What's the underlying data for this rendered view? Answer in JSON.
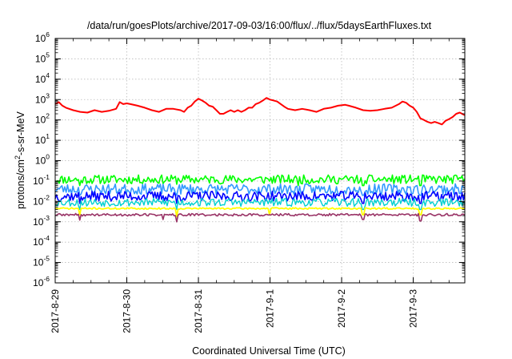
{
  "chart_data": {
    "type": "line",
    "title": "/data/run/goesPlots/archive/2017-09-03/16:00/flux/../flux/5daysEarthFluxes.txt",
    "xlabel": "Coordinated Universal Time (UTC)",
    "ylabel_parts": [
      "protons/cm",
      "2",
      "-s-sr-MeV"
    ],
    "yscale": "log",
    "ylim_exponents": [
      -6,
      6
    ],
    "y_tick_exponents": [
      -6,
      -5,
      -4,
      -3,
      -2,
      -1,
      0,
      1,
      2,
      3,
      4,
      5,
      6
    ],
    "x_ticks": [
      "2017-8-29",
      "2017-8-30",
      "2017-8-31",
      "2017-9-1",
      "2017-9-2",
      "2017-9-3"
    ],
    "xlim_days": [
      0,
      5.72
    ],
    "grid": true,
    "colors": {
      "red": "#ff0000",
      "green": "#00ff00",
      "lightblue": "#3399ff",
      "blue": "#0000ff",
      "cyan": "#00d0d0",
      "yellow": "#ffff00",
      "purple": "#993366",
      "grid": "#bbbbbb"
    },
    "series": [
      {
        "color": "#ff0000",
        "width": 2,
        "points": [
          [
            0,
            600
          ],
          [
            0.05,
            750
          ],
          [
            0.1,
            500
          ],
          [
            0.15,
            400
          ],
          [
            0.25,
            300
          ],
          [
            0.35,
            250
          ],
          [
            0.45,
            230
          ],
          [
            0.55,
            300
          ],
          [
            0.65,
            250
          ],
          [
            0.75,
            280
          ],
          [
            0.85,
            350
          ],
          [
            0.9,
            750
          ],
          [
            0.95,
            600
          ],
          [
            1.0,
            650
          ],
          [
            1.05,
            600
          ],
          [
            1.15,
            500
          ],
          [
            1.25,
            400
          ],
          [
            1.35,
            300
          ],
          [
            1.45,
            250
          ],
          [
            1.55,
            350
          ],
          [
            1.65,
            350
          ],
          [
            1.75,
            300
          ],
          [
            1.8,
            250
          ],
          [
            1.85,
            400
          ],
          [
            1.9,
            500
          ],
          [
            1.95,
            800
          ],
          [
            2.0,
            1100
          ],
          [
            2.05,
            900
          ],
          [
            2.1,
            700
          ],
          [
            2.15,
            500
          ],
          [
            2.2,
            450
          ],
          [
            2.25,
            300
          ],
          [
            2.3,
            200
          ],
          [
            2.35,
            200
          ],
          [
            2.4,
            250
          ],
          [
            2.45,
            300
          ],
          [
            2.5,
            250
          ],
          [
            2.55,
            300
          ],
          [
            2.6,
            250
          ],
          [
            2.65,
            300
          ],
          [
            2.7,
            400
          ],
          [
            2.75,
            400
          ],
          [
            2.8,
            600
          ],
          [
            2.85,
            700
          ],
          [
            2.9,
            900
          ],
          [
            2.95,
            1200
          ],
          [
            3.0,
            1000
          ],
          [
            3.05,
            900
          ],
          [
            3.1,
            800
          ],
          [
            3.15,
            600
          ],
          [
            3.2,
            450
          ],
          [
            3.25,
            350
          ],
          [
            3.35,
            300
          ],
          [
            3.45,
            350
          ],
          [
            3.55,
            300
          ],
          [
            3.65,
            250
          ],
          [
            3.75,
            350
          ],
          [
            3.85,
            400
          ],
          [
            3.95,
            500
          ],
          [
            4.05,
            550
          ],
          [
            4.1,
            500
          ],
          [
            4.2,
            400
          ],
          [
            4.3,
            300
          ],
          [
            4.4,
            280
          ],
          [
            4.5,
            300
          ],
          [
            4.6,
            350
          ],
          [
            4.7,
            400
          ],
          [
            4.8,
            600
          ],
          [
            4.85,
            800
          ],
          [
            4.9,
            700
          ],
          [
            4.95,
            500
          ],
          [
            5.0,
            400
          ],
          [
            5.05,
            250
          ],
          [
            5.1,
            120
          ],
          [
            5.15,
            100
          ],
          [
            5.2,
            80
          ],
          [
            5.25,
            70
          ],
          [
            5.3,
            80
          ],
          [
            5.35,
            70
          ],
          [
            5.4,
            60
          ],
          [
            5.45,
            90
          ],
          [
            5.5,
            110
          ],
          [
            5.55,
            140
          ],
          [
            5.6,
            200
          ],
          [
            5.65,
            230
          ],
          [
            5.72,
            170
          ]
        ]
      },
      {
        "color": "#00ff00",
        "width": 1.6,
        "base": 0.12,
        "amp": 0.22,
        "seed": 11,
        "spikes": [
          [
            0.35,
            0.06
          ],
          [
            1.7,
            0.07
          ],
          [
            3.4,
            0.06
          ],
          [
            4.3,
            0.06
          ],
          [
            5.1,
            0.06
          ]
        ]
      },
      {
        "color": "#3399ff",
        "width": 1.6,
        "base": 0.04,
        "amp": 0.26,
        "seed": 23,
        "spikes": [
          [
            0.35,
            0.02
          ],
          [
            1.7,
            0.02
          ],
          [
            3.4,
            0.02
          ],
          [
            4.3,
            0.02
          ],
          [
            5.1,
            0.02
          ]
        ]
      },
      {
        "color": "#0000ff",
        "width": 1.6,
        "base": 0.018,
        "amp": 0.24,
        "seed": 37,
        "spikes": [
          [
            0.35,
            0.008
          ],
          [
            1.7,
            0.008
          ],
          [
            4.3,
            0.008
          ],
          [
            5.1,
            0.008
          ]
        ]
      },
      {
        "color": "#00d0d0",
        "width": 1.4,
        "base": 0.009,
        "amp": 0.2,
        "seed": 53,
        "spikes": [
          [
            0.35,
            0.004
          ],
          [
            1.7,
            0.004
          ],
          [
            4.3,
            0.004
          ],
          [
            5.1,
            0.004
          ]
        ]
      },
      {
        "color": "#ffff00",
        "width": 1.8,
        "base": 0.0045,
        "amp": 0.04,
        "seed": 71,
        "spikes": [
          [
            0.35,
            0.0022
          ],
          [
            1.7,
            0.0018
          ],
          [
            3.0,
            0.0022
          ],
          [
            4.3,
            0.0022
          ],
          [
            5.1,
            0.0022
          ]
        ]
      },
      {
        "color": "#993366",
        "width": 1.6,
        "base": 0.0022,
        "amp": 0.06,
        "seed": 89,
        "spikes": [
          [
            0.35,
            0.0012
          ],
          [
            1.5,
            0.0013
          ],
          [
            1.7,
            0.001
          ],
          [
            4.3,
            0.0013
          ],
          [
            5.1,
            0.0011
          ]
        ]
      }
    ]
  }
}
